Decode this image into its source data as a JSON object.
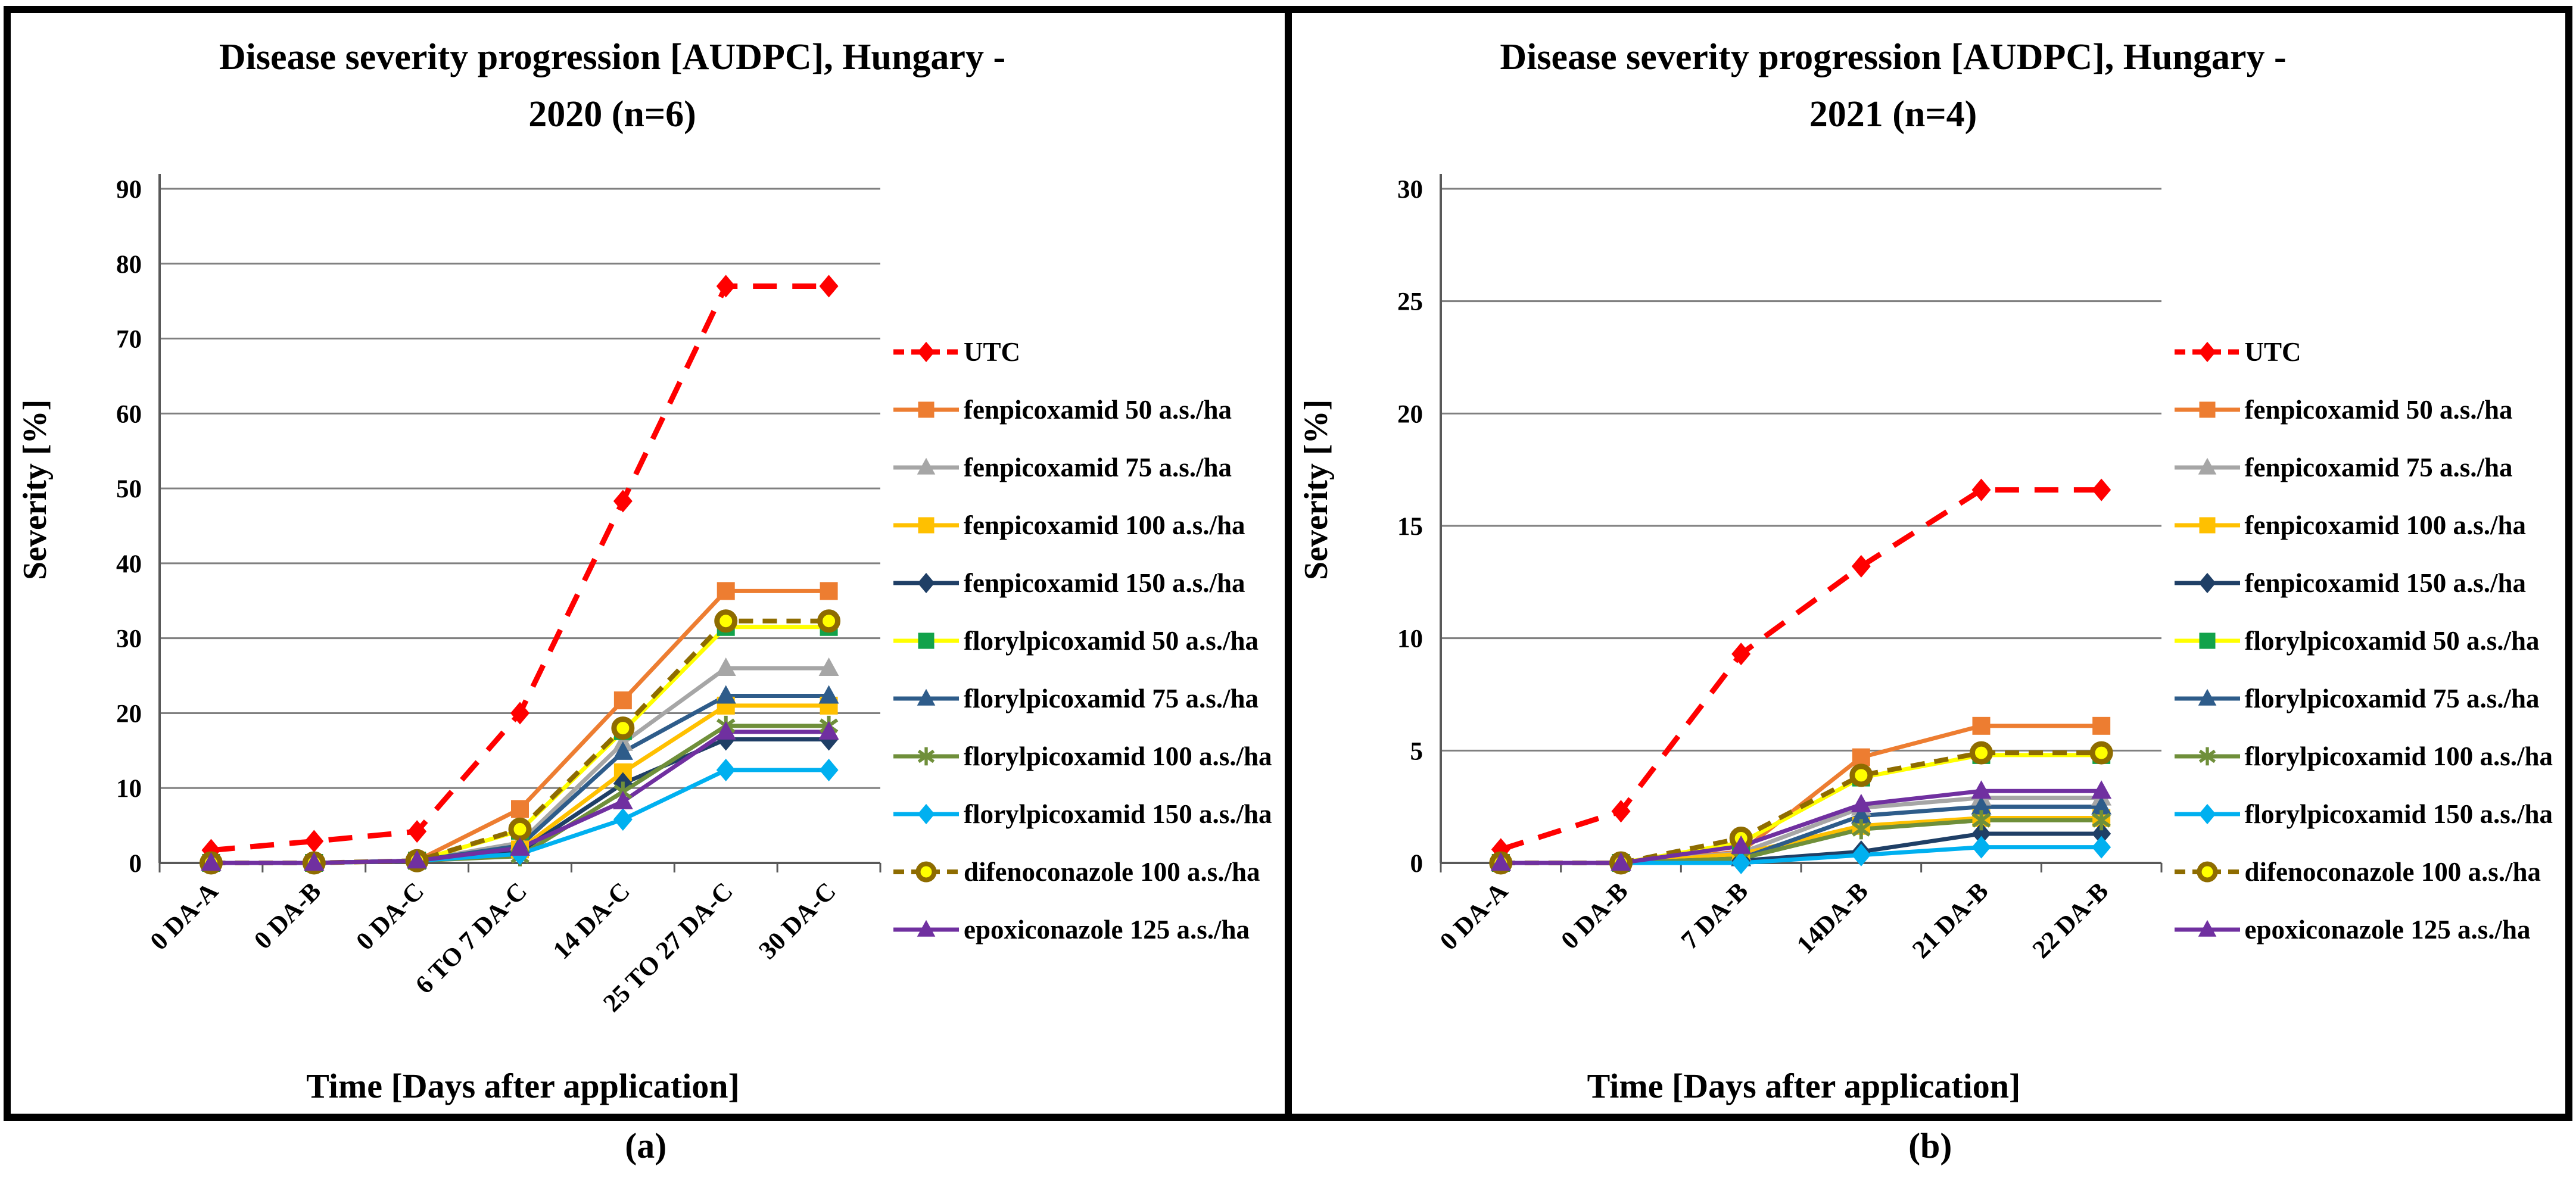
{
  "figure": {
    "captions": {
      "a": "(a)",
      "b": "(b)"
    }
  },
  "chart_data": [
    {
      "id": "hungary-2020",
      "type": "line",
      "title_line1": "Disease severity progression [AUDPC], Hungary -",
      "title_line2": "2020 (n=6)",
      "ylabel": "Severity [%]",
      "xlabel": "Time [Days after application]",
      "ylim": [
        0,
        90
      ],
      "ytick_step": 10,
      "grid": true,
      "legend_position": "right",
      "categories": [
        "0 DA-A",
        "0 DA-B",
        "0 DA-C",
        "6 TO 7 DA-C",
        "14 DA-C",
        "25 TO 27 DA-C",
        "30 DA-C"
      ],
      "series": [
        {
          "name": "UTC",
          "color": "#FF0000",
          "dash": "40 26",
          "width": 9,
          "marker": "diamond",
          "marker_color": "#FF0000",
          "values": [
            1.7,
            2.9,
            4.2,
            20,
            48.3,
            77,
            77
          ]
        },
        {
          "name": "fenpicoxamid 50 a.s./ha",
          "color": "#ED7D31",
          "width": 7,
          "marker": "square",
          "marker_color": "#ED7D31",
          "values": [
            0,
            0,
            0.3,
            7.2,
            21.7,
            36.3,
            36.3
          ]
        },
        {
          "name": "fenpicoxamid 75 a.s./ha",
          "color": "#A6A6A6",
          "width": 7,
          "marker": "triangle",
          "marker_color": "#A6A6A6",
          "values": [
            0,
            0,
            0.3,
            2.7,
            16,
            26,
            26
          ]
        },
        {
          "name": "fenpicoxamid 100 a.s./ha",
          "color": "#FFC000",
          "width": 7,
          "marker": "square",
          "marker_color": "#FFC000",
          "values": [
            0,
            0,
            0.3,
            1.8,
            12.1,
            21,
            21
          ]
        },
        {
          "name": "fenpicoxamid 150 a.s./ha",
          "color": "#1F3F66",
          "width": 7,
          "marker": "diamond",
          "marker_color": "#1F3F66",
          "values": [
            0,
            0,
            0.3,
            1.5,
            10.6,
            16.5,
            16.5
          ]
        },
        {
          "name": "florylpicoxamid 50 a.s./ha",
          "color": "#FFFF00",
          "width": 7,
          "marker": "square",
          "marker_color": "#12A24B",
          "values": [
            0,
            0,
            0.3,
            4.3,
            17.6,
            31.5,
            31.5
          ]
        },
        {
          "name": "florylpicoxamid 75 a.s./ha",
          "color": "#2E5C8A",
          "width": 7,
          "marker": "triangle",
          "marker_color": "#2E5C8A",
          "values": [
            0,
            0,
            0.3,
            2.3,
            14.8,
            22.3,
            22.3
          ]
        },
        {
          "name": "florylpicoxamid 100 a.s./ha",
          "color": "#6F8F3A",
          "width": 7,
          "marker": "asterisk",
          "marker_color": "#6F8F3A",
          "values": [
            0,
            0,
            0.3,
            0.9,
            9.5,
            18.3,
            18.3
          ]
        },
        {
          "name": "florylpicoxamid 150 a.s./ha",
          "color": "#00B0F0",
          "width": 7,
          "marker": "diamond",
          "marker_color": "#00B0F0",
          "values": [
            0,
            0,
            0.3,
            1.2,
            5.8,
            12.4,
            12.4
          ]
        },
        {
          "name": "difenoconazole 100 a.s./ha",
          "color": "#8E6C00",
          "dash": "24 16",
          "width": 8,
          "marker": "circle",
          "marker_color": "#FFFF00",
          "marker_stroke": "#8E6C00",
          "values": [
            0,
            0,
            0.3,
            4.5,
            18,
            32.3,
            32.3
          ]
        },
        {
          "name": "epoxiconazole 125 a.s./ha",
          "color": "#7030A0",
          "width": 7,
          "marker": "triangle",
          "marker_color": "#7030A0",
          "values": [
            0,
            0,
            0.3,
            2.0,
            8.2,
            17.5,
            17.5
          ]
        }
      ]
    },
    {
      "id": "hungary-2021",
      "type": "line",
      "title_line1": "Disease severity progression [AUDPC], Hungary -",
      "title_line2": "2021 (n=4)",
      "ylabel": "Severity [%]",
      "xlabel": "Time [Days after application]",
      "ylim": [
        0,
        30
      ],
      "ytick_step": 5,
      "grid": true,
      "legend_position": "right",
      "categories": [
        "0 DA-A",
        "0 DA-B",
        "7 DA-B",
        "14DA-B",
        "21 DA-B",
        "22 DA-B"
      ],
      "series": [
        {
          "name": "UTC",
          "color": "#FF0000",
          "dash": "40 26",
          "width": 9,
          "marker": "diamond",
          "marker_color": "#FF0000",
          "values": [
            0.6,
            2.3,
            9.3,
            13.2,
            16.6,
            16.6
          ]
        },
        {
          "name": "fenpicoxamid 50 a.s./ha",
          "color": "#ED7D31",
          "width": 7,
          "marker": "square",
          "marker_color": "#ED7D31",
          "values": [
            0,
            0,
            0.5,
            4.7,
            6.1,
            6.1
          ]
        },
        {
          "name": "fenpicoxamid 75 a.s./ha",
          "color": "#A6A6A6",
          "width": 7,
          "marker": "triangle",
          "marker_color": "#A6A6A6",
          "values": [
            0,
            0,
            0.45,
            2.45,
            2.9,
            2.9
          ]
        },
        {
          "name": "fenpicoxamid 100 a.s./ha",
          "color": "#FFC000",
          "width": 7,
          "marker": "square",
          "marker_color": "#FFC000",
          "values": [
            0,
            0,
            0.4,
            1.65,
            2.0,
            2.0
          ]
        },
        {
          "name": "fenpicoxamid 150 a.s./ha",
          "color": "#1F3F66",
          "width": 7,
          "marker": "diamond",
          "marker_color": "#1F3F66",
          "values": [
            0,
            0,
            0.1,
            0.5,
            1.3,
            1.3
          ]
        },
        {
          "name": "florylpicoxamid 50 a.s./ha",
          "color": "#FFFF00",
          "width": 7,
          "marker": "square",
          "marker_color": "#12A24B",
          "values": [
            0,
            0,
            0.9,
            3.8,
            4.8,
            4.8
          ]
        },
        {
          "name": "florylpicoxamid 75 a.s./ha",
          "color": "#2E5C8A",
          "width": 7,
          "marker": "triangle",
          "marker_color": "#2E5C8A",
          "values": [
            0,
            0,
            0.2,
            2.1,
            2.5,
            2.5
          ]
        },
        {
          "name": "florylpicoxamid 100 a.s./ha",
          "color": "#6F8F3A",
          "width": 7,
          "marker": "asterisk",
          "marker_color": "#6F8F3A",
          "values": [
            0,
            0,
            0.2,
            1.5,
            1.9,
            1.9
          ]
        },
        {
          "name": "florylpicoxamid 150 a.s./ha",
          "color": "#00B0F0",
          "width": 7,
          "marker": "diamond",
          "marker_color": "#00B0F0",
          "values": [
            0,
            0,
            0,
            0.35,
            0.7,
            0.7
          ]
        },
        {
          "name": "difenoconazole 100 a.s./ha",
          "color": "#8E6C00",
          "dash": "24 16",
          "width": 8,
          "marker": "circle",
          "marker_color": "#FFFF00",
          "marker_stroke": "#8E6C00",
          "values": [
            0,
            0,
            1.1,
            3.9,
            4.9,
            4.9
          ]
        },
        {
          "name": "epoxiconazole 125 a.s./ha",
          "color": "#7030A0",
          "width": 7,
          "marker": "triangle",
          "marker_color": "#7030A0",
          "values": [
            0,
            0,
            0.75,
            2.6,
            3.2,
            3.2
          ]
        }
      ]
    }
  ]
}
